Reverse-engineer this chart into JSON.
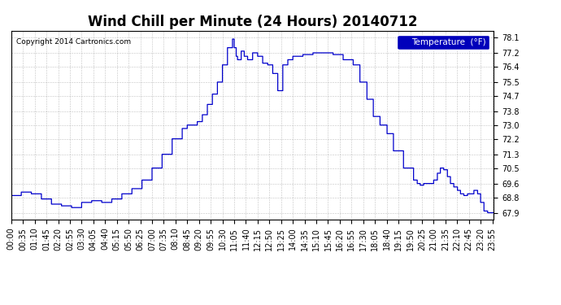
{
  "title": "Wind Chill per Minute (24 Hours) 20140712",
  "copyright": "Copyright 2014 Cartronics.com",
  "legend_label": "Temperature  (°F)",
  "line_color": "#0000cc",
  "legend_bg": "#0000bb",
  "legend_text_color": "#ffffff",
  "background_color": "#ffffff",
  "grid_color": "#999999",
  "ylim": [
    67.5,
    78.5
  ],
  "yticks": [
    67.9,
    68.8,
    69.6,
    70.5,
    71.3,
    72.2,
    73.0,
    73.8,
    74.7,
    75.5,
    76.4,
    77.2,
    78.1
  ],
  "title_fontsize": 12,
  "tick_label_fontsize": 7,
  "x_tick_step": 35
}
